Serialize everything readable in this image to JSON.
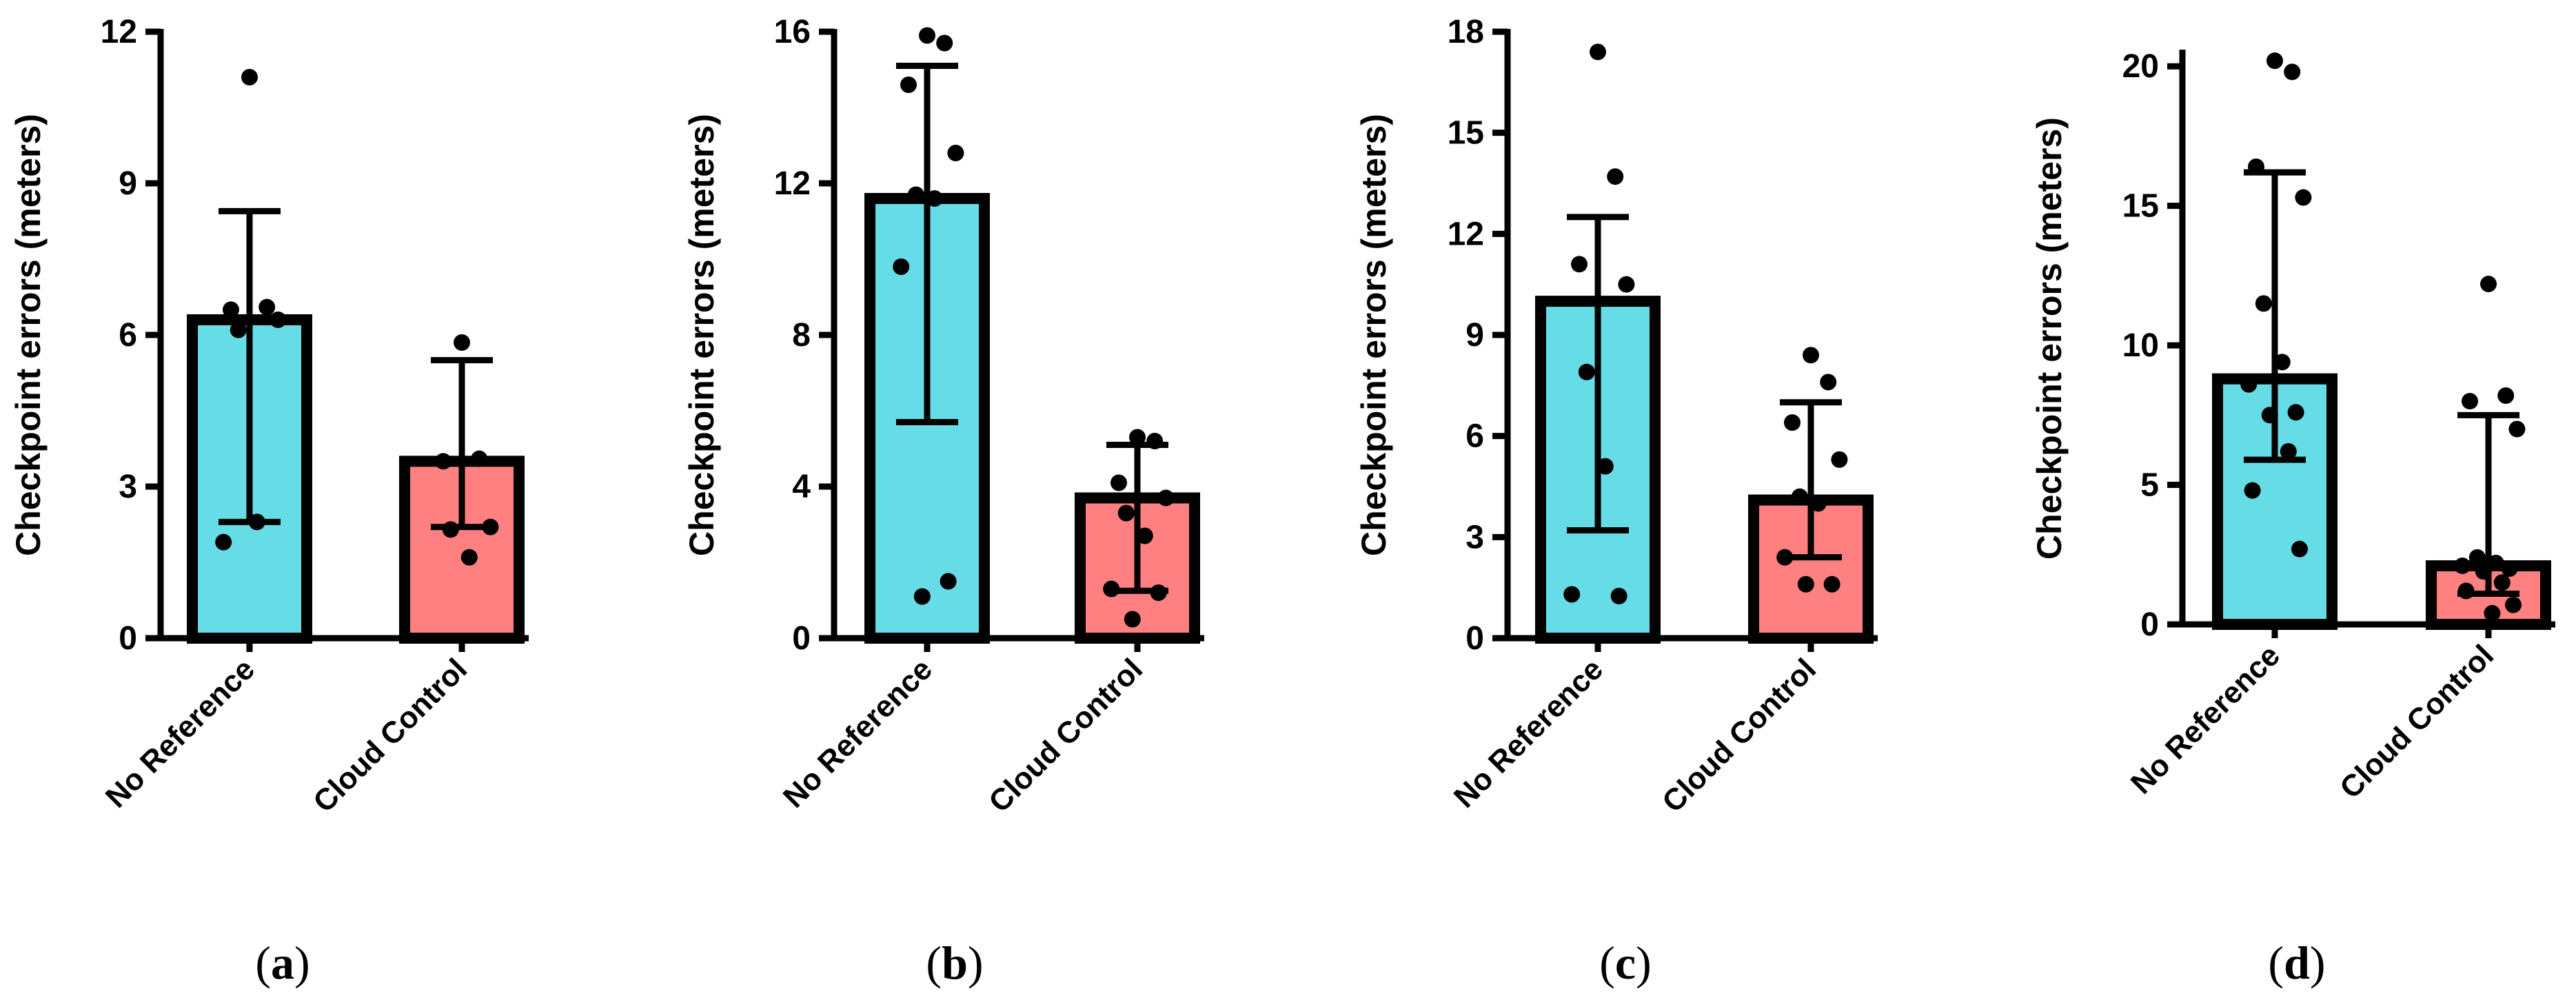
{
  "colors": {
    "no_reference_fill": "#66DCE6",
    "cloud_control_fill": "#FF8080",
    "stroke": "#000000"
  },
  "chart_data": [
    {
      "type": "bar",
      "panel_label": "(a)",
      "panel_letter": "a",
      "ylabel": "Checkpoint errors (meters)",
      "ylim": [
        0,
        12
      ],
      "yticks": [
        0,
        3,
        6,
        9,
        12
      ],
      "categories": [
        "No Reference",
        "Cloud Control"
      ],
      "bars": [
        {
          "category": "No Reference",
          "value": 6.3,
          "error_low": 2.3,
          "error_high": 8.45,
          "points": [
            11.1,
            6.55,
            6.5,
            6.3,
            6.1,
            2.3,
            1.9
          ]
        },
        {
          "category": "Cloud Control",
          "value": 3.5,
          "error_low": 2.2,
          "error_high": 5.5,
          "points": [
            5.85,
            3.55,
            3.5,
            2.2,
            2.15,
            1.6
          ]
        }
      ]
    },
    {
      "type": "bar",
      "panel_label": "(b)",
      "panel_letter": "b",
      "ylabel": "Checkpoint errors (meters)",
      "ylim": [
        0,
        16
      ],
      "yticks": [
        0,
        4,
        8,
        12,
        16
      ],
      "categories": [
        "No Reference",
        "Cloud Control"
      ],
      "bars": [
        {
          "category": "No Reference",
          "value": 11.6,
          "error_low": 5.7,
          "error_high": 15.1,
          "points": [
            15.9,
            15.7,
            14.6,
            12.8,
            11.7,
            11.6,
            9.8,
            1.5,
            1.1
          ]
        },
        {
          "category": "Cloud Control",
          "value": 3.7,
          "error_low": 1.25,
          "error_high": 5.1,
          "points": [
            5.3,
            5.2,
            4.1,
            3.7,
            3.3,
            2.7,
            1.3,
            1.2,
            0.5
          ]
        }
      ]
    },
    {
      "type": "bar",
      "panel_label": "(c)",
      "panel_letter": "c",
      "ylabel": "Checkpoint errors (meters)",
      "ylim": [
        0,
        18
      ],
      "yticks": [
        0,
        3,
        6,
        9,
        12,
        15,
        18
      ],
      "categories": [
        "No Reference",
        "Cloud Control"
      ],
      "bars": [
        {
          "category": "No Reference",
          "value": 10.0,
          "error_low": 3.2,
          "error_high": 12.5,
          "points": [
            17.4,
            13.7,
            11.1,
            10.5,
            7.9,
            5.1,
            1.3,
            1.25
          ]
        },
        {
          "category": "Cloud Control",
          "value": 4.1,
          "error_low": 2.4,
          "error_high": 7.0,
          "points": [
            8.4,
            7.6,
            6.4,
            5.3,
            4.2,
            4.0,
            2.4,
            1.6,
            1.6
          ]
        }
      ]
    },
    {
      "type": "bar",
      "panel_label": "(d)",
      "panel_letter": "d",
      "ylabel": "Checkpoint errors (meters)",
      "ylim": [
        0,
        20.5
      ],
      "yticks": [
        0,
        5,
        10,
        15,
        20
      ],
      "categories": [
        "No Reference",
        "Cloud Control"
      ],
      "bars": [
        {
          "category": "No Reference",
          "value": 8.8,
          "error_low": 5.9,
          "error_high": 16.2,
          "points": [
            20.2,
            19.8,
            16.4,
            15.3,
            11.5,
            9.4,
            8.6,
            7.6,
            7.5,
            6.2,
            4.8,
            2.7
          ]
        },
        {
          "category": "Cloud Control",
          "value": 2.1,
          "error_low": 1.1,
          "error_high": 7.5,
          "points": [
            12.2,
            8.2,
            8.0,
            7.0,
            2.4,
            2.2,
            2.1,
            2.0,
            1.9,
            1.5,
            1.2,
            0.7,
            0.4
          ]
        }
      ]
    }
  ]
}
